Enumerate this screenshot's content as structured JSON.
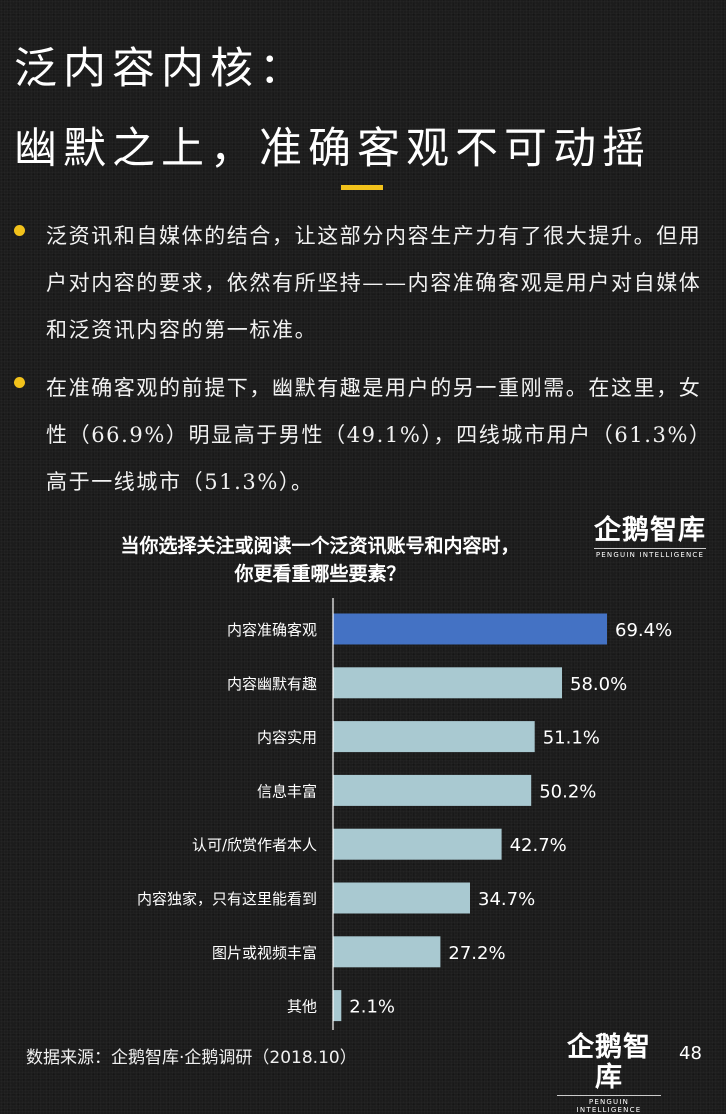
{
  "header": {
    "title_line1": "泛内容内核：",
    "title_line2": "幽默之上，准确客观不可动摇"
  },
  "bullets": [
    "泛资讯和自媒体的结合，让这部分内容生产力有了很大提升。但用户对内容的要求，依然有所坚持——内容准确客观是用户对自媒体和泛资讯内容的第一标准。",
    "在准确客观的前提下，幽默有趣是用户的另一重刚需。在这里，女性（66.9%）明显高于男性（49.1%），四线城市用户（61.3%）高于一线城市（51.3%）。"
  ],
  "logo": {
    "name": "企鹅智库",
    "subtitle": "PENGUIN INTELLIGENCE"
  },
  "chart_data": {
    "type": "bar",
    "orientation": "horizontal",
    "title": "当你选择关注或阅读一个泛资讯账号和内容时，你更看重哪些要素？",
    "title_line1": "当你选择关注或阅读一个泛资讯账号和内容时，",
    "title_line2": "你更看重哪些要素？",
    "categories": [
      "内容准确客观",
      "内容幽默有趣",
      "内容实用",
      "信息丰富",
      "认可/欣赏作者本人",
      "内容独家，只有这里能看到",
      "图片或视频丰富",
      "其他"
    ],
    "values": [
      69.4,
      58.0,
      51.1,
      50.2,
      42.7,
      34.7,
      27.2,
      2.1
    ],
    "value_labels": [
      "69.4%",
      "58.0%",
      "51.1%",
      "50.2%",
      "42.7%",
      "34.7%",
      "27.2%",
      "2.1%"
    ],
    "unit": "%",
    "xlim": [
      0,
      70
    ],
    "highlight_index": 0,
    "colors": {
      "highlight": "#4472c4",
      "default": "#a9c9d1",
      "axis": "#ffffff"
    },
    "grid": false,
    "legend": "none"
  },
  "footer": {
    "source": "数据来源：企鹅智库·企鹅调研（2018.10）",
    "page_number": "48"
  }
}
